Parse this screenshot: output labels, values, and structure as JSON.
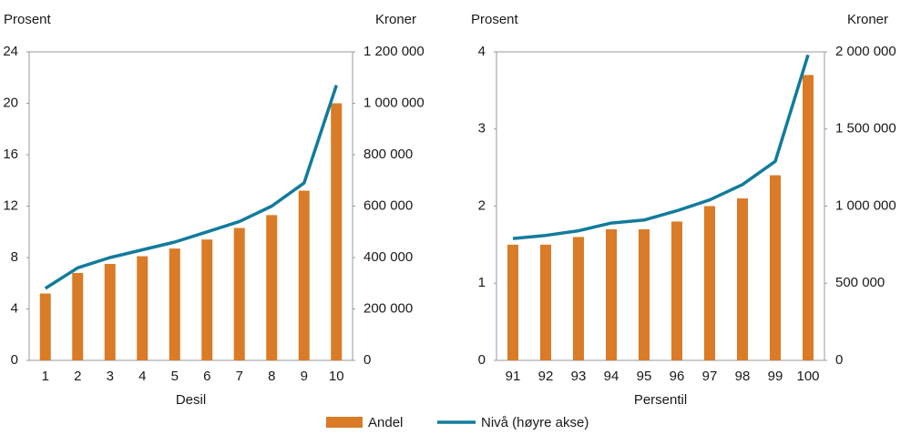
{
  "chart_data": [
    {
      "type": "bar-line",
      "y_label": "Prosent",
      "y2_label": "Kroner",
      "x_label": "Desil",
      "categories": [
        "1",
        "2",
        "3",
        "4",
        "5",
        "6",
        "7",
        "8",
        "9",
        "10"
      ],
      "ylim": [
        0,
        24
      ],
      "yticks": [
        0,
        4,
        8,
        12,
        16,
        20,
        24
      ],
      "y2lim": [
        0,
        1200000
      ],
      "y2ticks": [
        0,
        {
          "value": 200000,
          "label": "200 000"
        },
        {
          "value": 400000,
          "label": "400 000"
        },
        {
          "value": 600000,
          "label": "600 000"
        },
        {
          "value": 800000,
          "label": "800 000"
        },
        {
          "value": 1000000,
          "label": "1 000 000"
        },
        {
          "value": 1200000,
          "label": "1 200 000"
        }
      ],
      "series": [
        {
          "name": "Andel",
          "color": "#d97b27",
          "values": [
            5.2,
            6.8,
            7.5,
            8.1,
            8.7,
            9.4,
            10.3,
            11.3,
            13.2,
            20.0
          ]
        },
        {
          "name": "Nivå (høyre akse)",
          "color": "#127b9c",
          "axis": "y2",
          "values": [
            280000,
            360000,
            400000,
            430000,
            460000,
            500000,
            540000,
            600000,
            690000,
            1070000
          ]
        }
      ]
    },
    {
      "type": "bar-line",
      "y_label": "Prosent",
      "y2_label": "Kroner",
      "x_label": "Persentil",
      "categories": [
        "91",
        "92",
        "93",
        "94",
        "95",
        "96",
        "97",
        "98",
        "99",
        "100"
      ],
      "ylim": [
        0,
        4
      ],
      "yticks": [
        0,
        1,
        2,
        3,
        4
      ],
      "y2lim": [
        0,
        2000000
      ],
      "y2ticks": [
        0,
        {
          "value": 500000,
          "label": "500 000"
        },
        {
          "value": 1000000,
          "label": "1 000 000"
        },
        {
          "value": 1500000,
          "label": "1 500 000"
        },
        {
          "value": 2000000,
          "label": "2 000 000"
        }
      ],
      "series": [
        {
          "color": "#d97b27",
          "values": [
            1.5,
            1.5,
            1.6,
            1.7,
            1.7,
            1.8,
            2.0,
            2.1,
            2.4,
            3.7
          ]
        },
        {
          "color": "#127b9c",
          "axis": "y2",
          "values": [
            790000,
            810000,
            840000,
            890000,
            910000,
            970000,
            1040000,
            1140000,
            1290000,
            1980000
          ]
        }
      ]
    }
  ]
}
